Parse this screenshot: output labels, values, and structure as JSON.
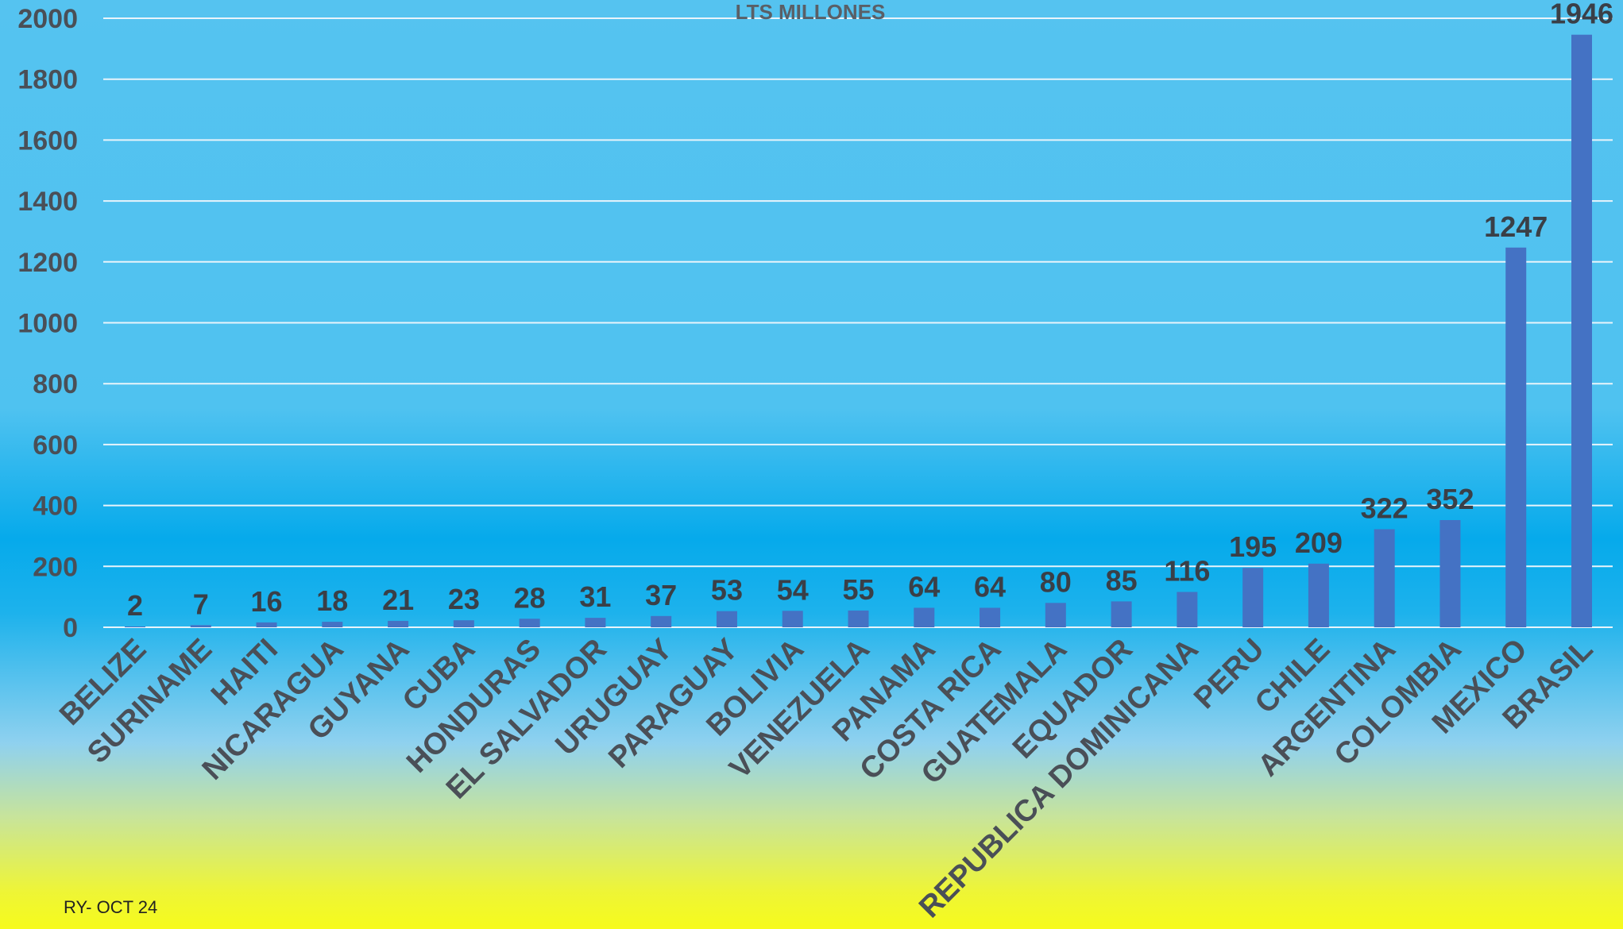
{
  "chart_data": {
    "type": "bar",
    "title": "LTS MILLONES",
    "xlabel": "",
    "ylabel": "",
    "ylim": [
      0,
      2000
    ],
    "yticks": [
      0,
      200,
      400,
      600,
      800,
      1000,
      1200,
      1400,
      1600,
      1800,
      2000
    ],
    "grid": true,
    "legend": "none",
    "categories": [
      "BELIZE",
      "SURINAME",
      "HAITI",
      "NICARAGUA",
      "GUYANA",
      "CUBA",
      "HONDURAS",
      "EL SALVADOR",
      "URUGUAY",
      "PARAGUAY",
      "BOLIVIA",
      "VENEZUELA",
      "PANAMA",
      "COSTA RICA",
      "GUATEMALA",
      "EQUADOR",
      "REPUBLICA DOMINICANA",
      "PERU",
      "CHILE",
      "ARGENTINA",
      "COLOMBIA",
      "MEXICO",
      "BRASIL"
    ],
    "values": [
      2,
      7,
      16,
      18,
      21,
      23,
      28,
      31,
      37,
      53,
      54,
      55,
      64,
      64,
      80,
      85,
      116,
      195,
      209,
      322,
      352,
      1247,
      1946
    ],
    "bar_color": "#4472c4",
    "gridline_color": "#e8f4fb",
    "label_color": "#4a4f57"
  },
  "footnote": "RY- OCT 24"
}
